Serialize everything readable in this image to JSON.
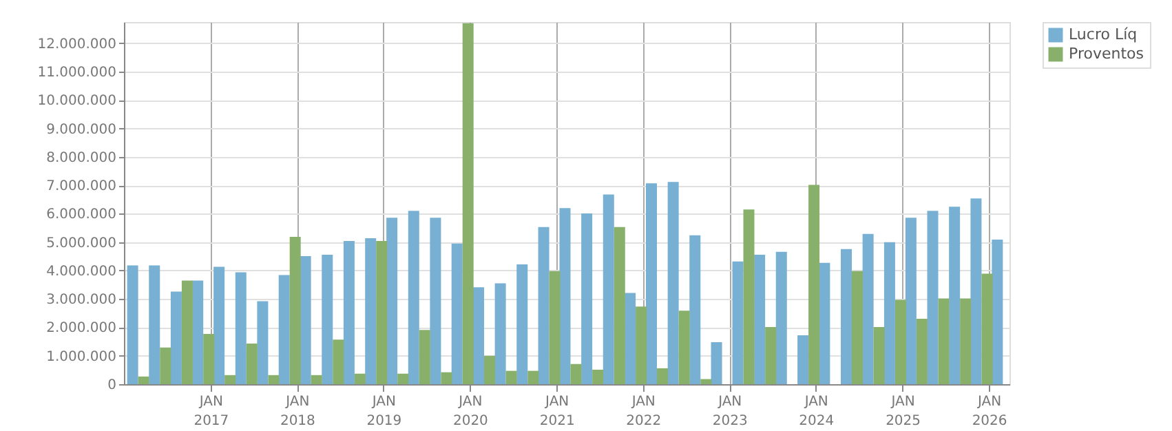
{
  "chart_data": {
    "type": "bar",
    "x": [
      "2016-03",
      "2016-06",
      "2016-09",
      "2016-12",
      "2017-03",
      "2017-06",
      "2017-09",
      "2017-12",
      "2018-03",
      "2018-06",
      "2018-09",
      "2018-12",
      "2019-03",
      "2019-06",
      "2019-09",
      "2019-12",
      "2020-03",
      "2020-06",
      "2020-09",
      "2020-12",
      "2021-03",
      "2021-06",
      "2021-09",
      "2021-12",
      "2022-03",
      "2022-06",
      "2022-09",
      "2022-12",
      "2023-03",
      "2023-06",
      "2023-09",
      "2023-12",
      "2024-03",
      "2024-06",
      "2024-09",
      "2024-12",
      "2025-03",
      "2025-06",
      "2025-09",
      "2025-12",
      "2026-03"
    ],
    "series": [
      {
        "name": "Lucro Líq",
        "color": "#77b0d2",
        "values": [
          4180000,
          4180000,
          3260000,
          3650000,
          4130000,
          3940000,
          2920000,
          3840000,
          4510000,
          4560000,
          5040000,
          5140000,
          5860000,
          6100000,
          5860000,
          4950000,
          3410000,
          3550000,
          4220000,
          5530000,
          6200000,
          6010000,
          6680000,
          3210000,
          7070000,
          7120000,
          5240000,
          1480000,
          4320000,
          4560000,
          4660000,
          1720000,
          4270000,
          4760000,
          5290000,
          5000000,
          5860000,
          6100000,
          6250000,
          6540000,
          5090000
        ]
      },
      {
        "name": "Proventos",
        "color": "#88b06b",
        "values": [
          270000,
          1290000,
          3650000,
          1770000,
          320000,
          1430000,
          320000,
          5190000,
          320000,
          1570000,
          370000,
          5040000,
          370000,
          1910000,
          420000,
          12710000,
          1000000,
          470000,
          470000,
          3980000,
          710000,
          510000,
          5530000,
          2730000,
          560000,
          2590000,
          180000,
          0,
          6150000,
          2010000,
          0,
          7020000,
          0,
          3980000,
          2010000,
          2970000,
          2300000,
          3020000,
          3020000,
          3890000,
          0
        ]
      }
    ],
    "xlim": [
      "2016-01-01",
      "2026-03-29"
    ],
    "xticks": [
      {
        "value": "2017-01",
        "label": "JAN 2017"
      },
      {
        "value": "2018-01",
        "label": "JAN 2018"
      },
      {
        "value": "2019-01",
        "label": "JAN 2019"
      },
      {
        "value": "2020-01",
        "label": "JAN 2020"
      },
      {
        "value": "2021-01",
        "label": "JAN 2021"
      },
      {
        "value": "2022-01",
        "label": "JAN 2022"
      },
      {
        "value": "2023-01",
        "label": "JAN 2023"
      },
      {
        "value": "2024-01",
        "label": "JAN 2024"
      },
      {
        "value": "2025-01",
        "label": "JAN 2025"
      },
      {
        "value": "2026-01",
        "label": "JAN 2026"
      }
    ],
    "ylim": [
      0,
      12750000
    ],
    "yticks": [
      0,
      {
        "value": 1000000,
        "label": "1.000.000"
      },
      {
        "value": 2000000,
        "label": "2.000.000"
      },
      {
        "value": 3000000,
        "label": "3.000.000"
      },
      {
        "value": 4000000,
        "label": "4.000.000"
      },
      {
        "value": 5000000,
        "label": "5.000.000"
      },
      {
        "value": 6000000,
        "label": "6.000.000"
      },
      {
        "value": 7000000,
        "label": "7.000.000"
      },
      {
        "value": 8000000,
        "label": "8.000.000"
      },
      {
        "value": 9000000,
        "label": "9.000.000"
      },
      {
        "value": 10000000,
        "label": "10.000.000"
      },
      {
        "value": 11000000,
        "label": "11.000.000"
      },
      {
        "value": 12000000,
        "label": "12.000.000"
      }
    ],
    "grid": true,
    "legend": "top right"
  }
}
